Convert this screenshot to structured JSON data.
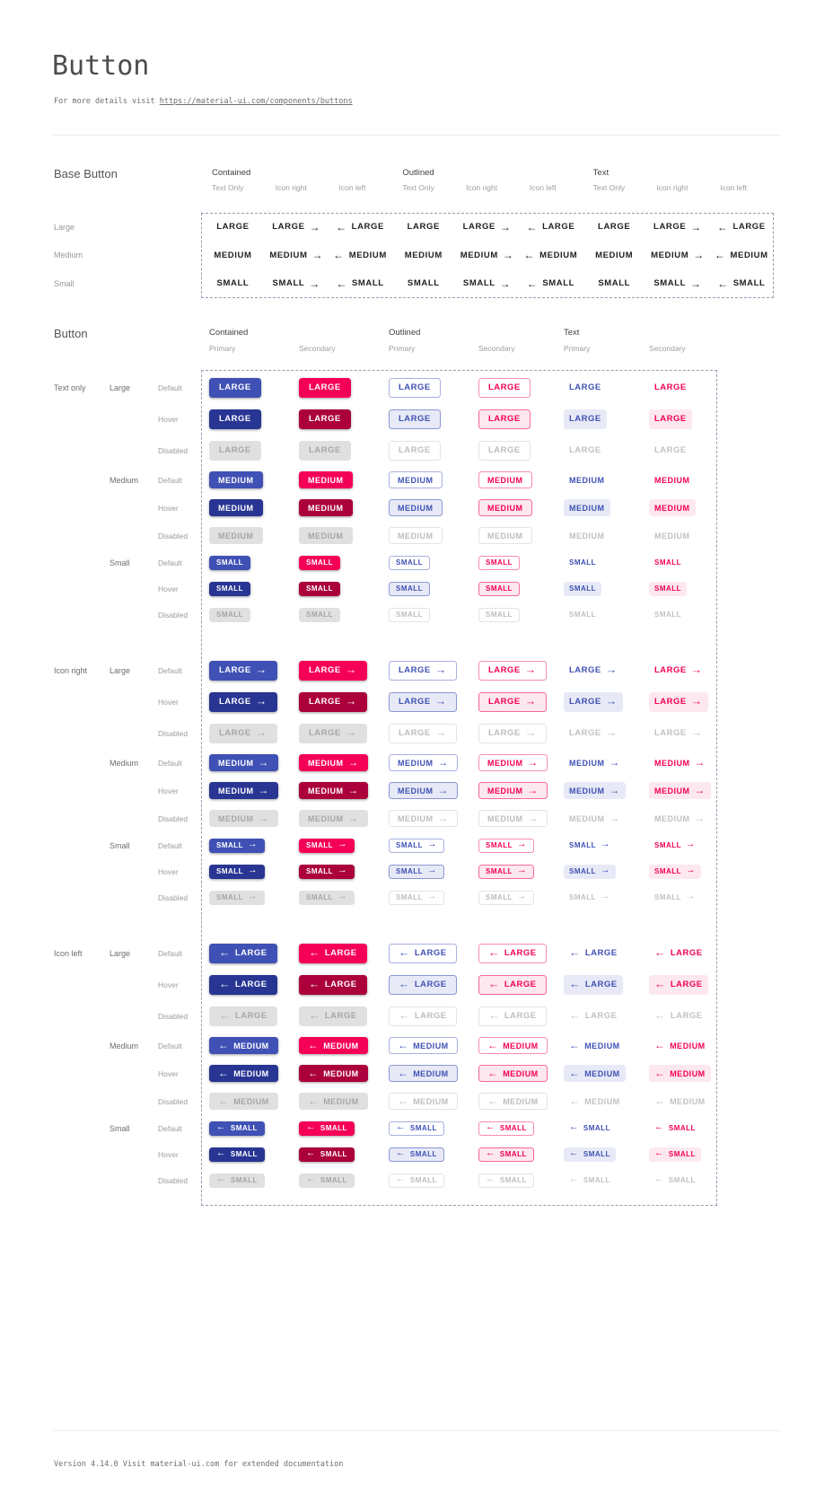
{
  "page": {
    "title": "Button",
    "subtitle_prefix": "For more details visit ",
    "subtitle_link": "https://material-ui.com/components/buttons",
    "footer": "Version 4.14.0  Visit material-ui.com for extended documentation"
  },
  "colors": {
    "primary": "#3f51b5",
    "primary_hover": "#283593",
    "secondary": "#f50057",
    "secondary_hover": "#ab003c",
    "disabled_bg": "#e0e0e0",
    "disabled_text": "#a6a6a6"
  },
  "icons": {
    "arrow_right": "→",
    "arrow_left": "←"
  },
  "base_section": {
    "heading": "Base Button",
    "groups": [
      "Contained",
      "Outlined",
      "Text"
    ],
    "columns": [
      "Text Only",
      "Icon right",
      "Icon left"
    ],
    "icon_variants": [
      "none",
      "right",
      "left"
    ],
    "rows": [
      {
        "label": "Large",
        "text": "LARGE"
      },
      {
        "label": "Medium",
        "text": "MEDIUM"
      },
      {
        "label": "Small",
        "text": "SMALL"
      }
    ]
  },
  "button_section": {
    "heading": "Button",
    "groups": [
      "Contained",
      "Outlined",
      "Text"
    ],
    "columns": [
      "Primary",
      "Secondary"
    ],
    "row_groups": [
      {
        "label": "Text only",
        "icon": "none"
      },
      {
        "label": "Icon right",
        "icon": "right"
      },
      {
        "label": "Icon left",
        "icon": "left"
      }
    ],
    "sizes": [
      {
        "label": "Large",
        "text": "LARGE"
      },
      {
        "label": "Medium",
        "text": "MEDIUM"
      },
      {
        "label": "Small",
        "text": "SMALL"
      }
    ],
    "states": [
      "Default",
      "Hover",
      "Disabled"
    ],
    "variants": [
      {
        "variant": "contained",
        "color": "primary"
      },
      {
        "variant": "contained",
        "color": "secondary"
      },
      {
        "variant": "outlined",
        "color": "primary"
      },
      {
        "variant": "outlined",
        "color": "secondary"
      },
      {
        "variant": "text",
        "color": "primary"
      },
      {
        "variant": "text",
        "color": "secondary"
      }
    ]
  }
}
